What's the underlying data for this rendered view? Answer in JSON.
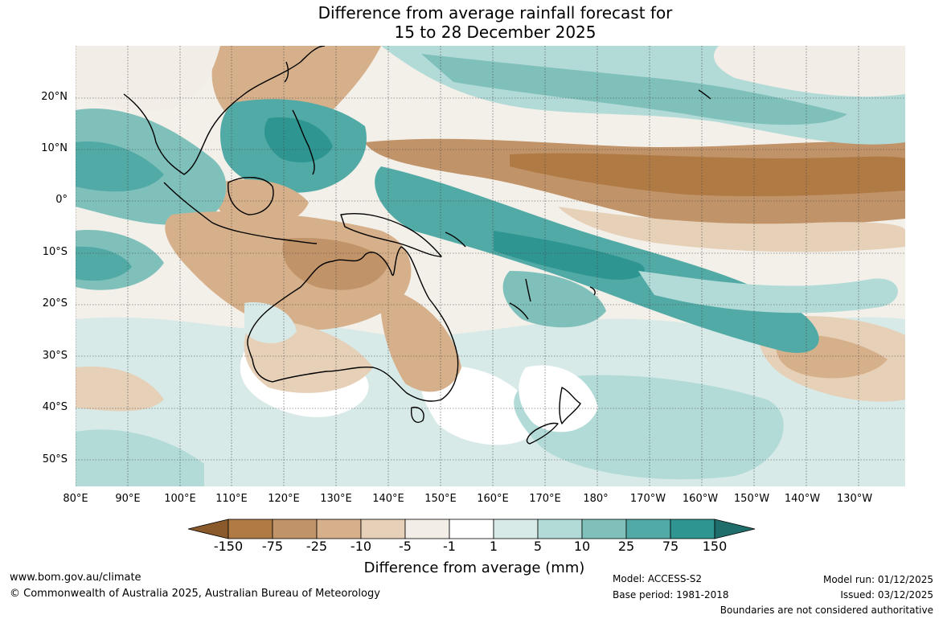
{
  "title": {
    "line1": "Difference from average rainfall forecast for",
    "line2": "15 to 28 December 2025"
  },
  "axes": {
    "lat_labels": [
      "20°N",
      "10°N",
      "0°",
      "10°S",
      "20°S",
      "30°S",
      "40°S",
      "50°S"
    ],
    "lat_values": [
      20,
      10,
      0,
      -10,
      -20,
      -30,
      -40,
      -50
    ],
    "lon_labels": [
      "80°E",
      "90°E",
      "100°E",
      "110°E",
      "120°E",
      "130°E",
      "140°E",
      "150°E",
      "160°E",
      "170°E",
      "180°",
      "170°W",
      "160°W",
      "150°W",
      "140°W",
      "130°W"
    ],
    "lon_values": [
      80,
      90,
      100,
      110,
      120,
      130,
      140,
      150,
      160,
      170,
      180,
      190,
      200,
      210,
      220,
      230
    ],
    "lon_range": [
      80,
      239
    ],
    "lat_range": [
      -55,
      30
    ]
  },
  "legend": {
    "title": "Difference from average (mm)",
    "tick_labels": [
      "-150",
      "-75",
      "-25",
      "-10",
      "-5",
      "-1",
      "1",
      "5",
      "10",
      "25",
      "75",
      "150"
    ],
    "colors": [
      "#8b5a2b",
      "#b07a45",
      "#c19368",
      "#d6b08a",
      "#e6d0b8",
      "#f2ede6",
      "#ffffff",
      "#d7eae8",
      "#b2dbd8",
      "#7fc0bb",
      "#52aaa6",
      "#2e9591",
      "#1f6e6b"
    ]
  },
  "footer": {
    "website": "www.bom.gov.au/climate",
    "copyright": "© Commonwealth of Australia 2025, Australian Bureau of Meteorology",
    "model": "Model: ACCESS-S2",
    "base_period": "Base period: 1981-2018",
    "model_run": "Model run: 01/12/2025",
    "issued": "Issued: 03/12/2025",
    "disclaimer": "Boundaries are not considered authoritative"
  }
}
